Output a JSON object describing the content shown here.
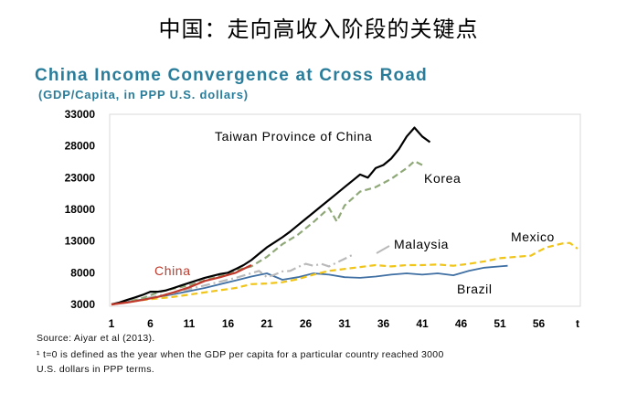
{
  "banner_title": "中国：走向高收入阶段的关键点",
  "chart_data": {
    "type": "line",
    "title": "China Income Convergence at Cross Road",
    "subtitle": "(GDP/Capita, in PPP U.S. dollars)",
    "xlabel": "",
    "ylabel": "",
    "x_ticks": [
      "1",
      "6",
      "11",
      "16",
      "21",
      "26",
      "31",
      "36",
      "41",
      "46",
      "51",
      "56",
      "t"
    ],
    "y_ticks": [
      "3000",
      "8000",
      "13000",
      "18000",
      "23000",
      "28000",
      "33000"
    ],
    "xlim": [
      1,
      61
    ],
    "ylim": [
      3000,
      33000
    ],
    "grid": false,
    "series": [
      {
        "name": "Taiwan Province of China",
        "color": "#000000",
        "dash": "solid",
        "x": [
          1,
          2,
          3,
          4,
          5,
          6,
          7,
          8,
          9,
          10,
          11,
          12,
          13,
          14,
          15,
          16,
          17,
          18,
          19,
          20,
          21,
          22,
          23,
          24,
          25,
          26,
          27,
          28,
          29,
          30,
          31,
          32,
          33,
          34,
          35,
          36,
          37,
          38,
          39,
          40,
          41,
          42
        ],
        "values": [
          3000,
          3300,
          3700,
          4100,
          4500,
          5000,
          5000,
          5200,
          5600,
          6000,
          6400,
          6800,
          7200,
          7500,
          7800,
          8000,
          8600,
          9200,
          10000,
          11000,
          12000,
          12800,
          13600,
          14500,
          15500,
          16500,
          17500,
          18500,
          19500,
          20500,
          21500,
          22500,
          23500,
          23000,
          24500,
          25000,
          26000,
          27500,
          29500,
          30900,
          29500,
          28600
        ]
      },
      {
        "name": "Korea",
        "color": "#8fa878",
        "dash": "dashed",
        "x": [
          1,
          3,
          5,
          7,
          9,
          11,
          13,
          15,
          17,
          19,
          21,
          23,
          25,
          27,
          29,
          30,
          31,
          33,
          35,
          37,
          39,
          40,
          41
        ],
        "values": [
          3000,
          3400,
          4000,
          4900,
          5500,
          6000,
          6800,
          7500,
          8400,
          9000,
          10500,
          12500,
          14000,
          16000,
          18200,
          16100,
          18600,
          20800,
          21500,
          22800,
          24500,
          25600,
          25000
        ]
      },
      {
        "name": "Malaysia",
        "color": "#b9b9b9",
        "dash": "dashdot",
        "x": [
          1,
          5,
          9,
          13,
          17,
          20,
          21,
          22,
          23,
          24,
          25,
          26,
          27,
          28,
          29,
          30,
          31,
          32
        ],
        "values": [
          3000,
          3900,
          4800,
          6000,
          7200,
          8300,
          7300,
          7700,
          8200,
          8300,
          8900,
          9400,
          9100,
          9400,
          9000,
          9600,
          10200,
          10800
        ]
      },
      {
        "name": "Mexico",
        "color": "#f0c419",
        "dash": "dashed",
        "x": [
          1,
          5,
          9,
          13,
          17,
          19,
          21,
          23,
          25,
          27,
          29,
          31,
          33,
          35,
          37,
          39,
          41,
          43,
          45,
          47,
          49,
          51,
          53,
          55,
          56,
          57,
          58,
          59,
          60,
          61
        ],
        "values": [
          3000,
          3700,
          4200,
          4900,
          5600,
          6200,
          6300,
          6500,
          7000,
          7700,
          8300,
          8600,
          8900,
          9200,
          9000,
          9200,
          9200,
          9300,
          9100,
          9400,
          9800,
          10300,
          10500,
          10700,
          11400,
          12000,
          12300,
          12600,
          12700,
          11800
        ]
      },
      {
        "name": "Brazil",
        "color": "#3f6fa3",
        "dash": "solid",
        "x": [
          1,
          5,
          9,
          13,
          17,
          19,
          21,
          23,
          25,
          27,
          29,
          31,
          33,
          35,
          37,
          39,
          41,
          43,
          45,
          47,
          49,
          51,
          52
        ],
        "values": [
          3000,
          3800,
          4600,
          5600,
          6800,
          7400,
          7900,
          6900,
          7300,
          7900,
          7700,
          7300,
          7200,
          7400,
          7700,
          7900,
          7700,
          7900,
          7600,
          8300,
          8800,
          9000,
          9100
        ]
      },
      {
        "name": "China",
        "color": "#c0392b",
        "dash": "solid",
        "x": [
          1,
          3,
          5,
          7,
          9,
          11,
          13,
          15,
          17,
          19
        ],
        "values": [
          3000,
          3300,
          3700,
          4200,
          4900,
          5700,
          6700,
          7300,
          8000,
          9200
        ]
      }
    ]
  },
  "footnotes": [
    "Source: Aiyar et al (2013).",
    "¹ t=0 is defined as the year when the GDP per capita for a particular country reached 3000",
    "U.S. dollars in PPP terms."
  ]
}
